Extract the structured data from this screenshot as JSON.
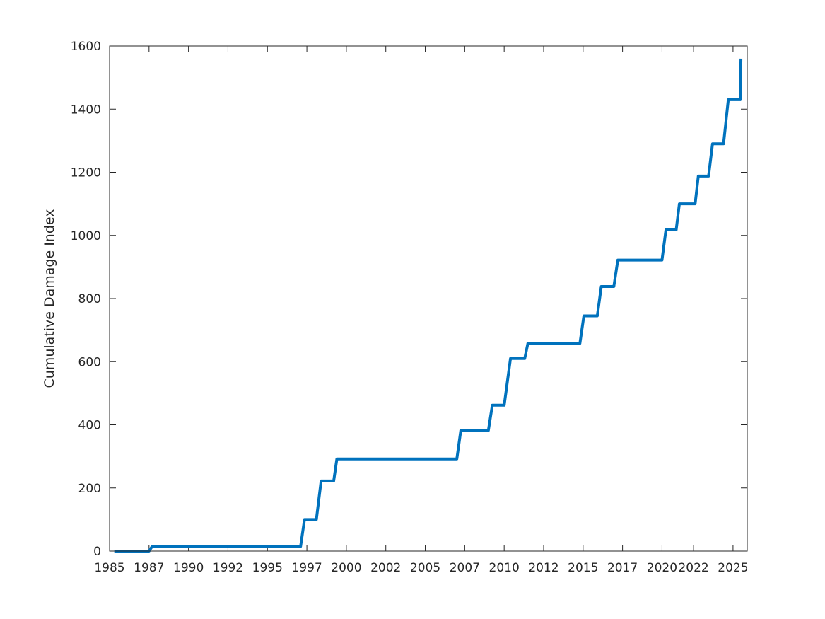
{
  "chart_data": {
    "type": "line",
    "title": "",
    "xlabel": "",
    "ylabel": "Cumulative Damage Index",
    "xlim": [
      1985.0,
      2025.4
    ],
    "ylim": [
      0,
      1600
    ],
    "grid": false,
    "box": true,
    "x_tick_labels": [
      "1985",
      "1987",
      "1990",
      "1992",
      "1995",
      "1997",
      "2000",
      "2002",
      "2005",
      "2007",
      "2010",
      "2012",
      "2015",
      "2017",
      "2020",
      "2022",
      "2025"
    ],
    "x_tick_values": [
      1985.0,
      1987.5,
      1990.0,
      1992.5,
      1995.0,
      1997.5,
      2000.0,
      2002.5,
      2005.0,
      2007.5,
      2010.0,
      2012.5,
      2015.0,
      2017.5,
      2020.0,
      2022.0,
      2024.5
    ],
    "y_ticks": [
      0,
      200,
      400,
      600,
      800,
      1000,
      1200,
      1400,
      1600
    ],
    "series": [
      {
        "color": "#0072BD",
        "points": [
          [
            1985.3,
            0
          ],
          [
            1987.5,
            0
          ],
          [
            1987.7,
            15
          ],
          [
            1997.1,
            15
          ],
          [
            1997.35,
            100
          ],
          [
            1998.1,
            100
          ],
          [
            1998.4,
            222
          ],
          [
            1999.2,
            222
          ],
          [
            1999.4,
            292
          ],
          [
            2007.0,
            292
          ],
          [
            2007.25,
            382
          ],
          [
            2009.0,
            382
          ],
          [
            2009.25,
            462
          ],
          [
            2010.0,
            462
          ],
          [
            2010.4,
            610
          ],
          [
            2011.3,
            610
          ],
          [
            2011.5,
            658
          ],
          [
            2014.8,
            658
          ],
          [
            2015.05,
            745
          ],
          [
            2015.9,
            745
          ],
          [
            2016.15,
            838
          ],
          [
            2016.95,
            838
          ],
          [
            2017.2,
            922
          ],
          [
            2020.0,
            922
          ],
          [
            2020.25,
            1018
          ],
          [
            2020.9,
            1018
          ],
          [
            2021.1,
            1100
          ],
          [
            2022.1,
            1100
          ],
          [
            2022.3,
            1188
          ],
          [
            2022.95,
            1188
          ],
          [
            2023.2,
            1290
          ],
          [
            2023.9,
            1290
          ],
          [
            2024.2,
            1430
          ],
          [
            2024.95,
            1430
          ],
          [
            2025.0,
            1560
          ]
        ]
      }
    ]
  }
}
